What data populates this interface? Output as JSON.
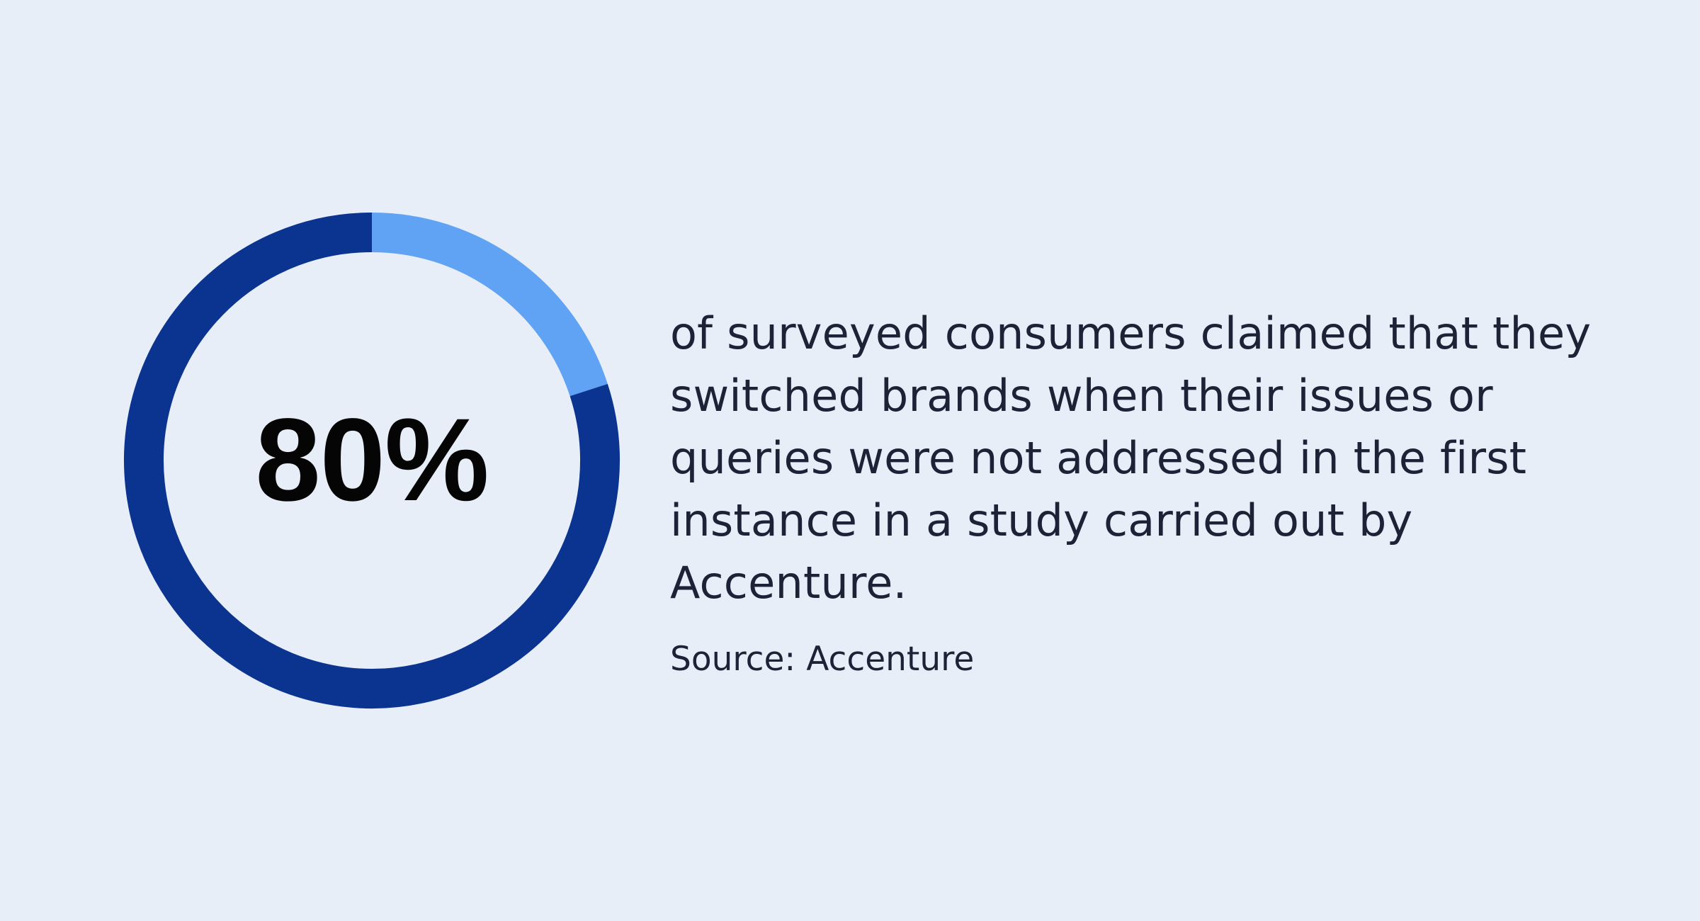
{
  "chart_data": {
    "type": "pie",
    "center_label": "80%",
    "slices": [
      {
        "value": 80,
        "color": "#0b3491"
      },
      {
        "value": 20,
        "color": "#60a3f4"
      }
    ]
  },
  "text": {
    "headline": "of surveyed consumers claimed that they switched brands when their issues or queries were not addressed in the first instance in a study carried out by Accenture.",
    "source": "Source: Accenture"
  },
  "colors": {
    "background": "#e7eef8",
    "text": "#1d2337",
    "primary": "#0b3491",
    "secondary": "#60a3f4"
  }
}
